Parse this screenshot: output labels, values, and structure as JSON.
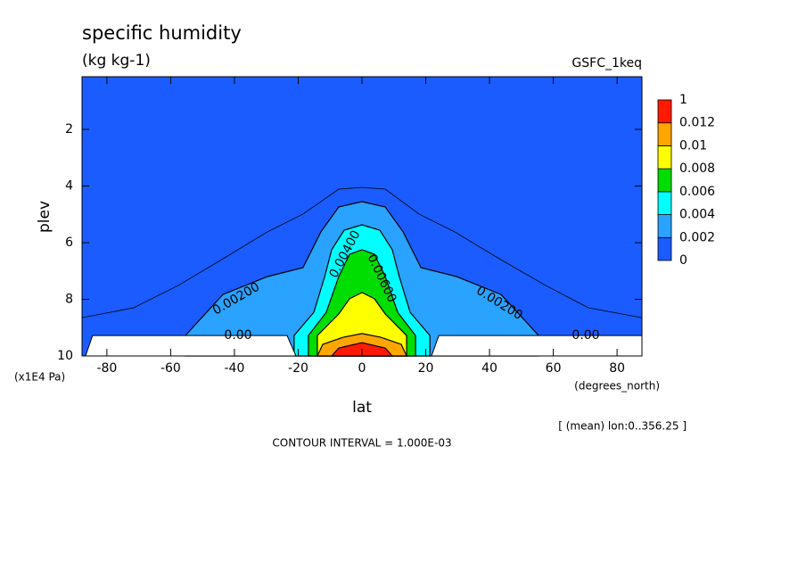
{
  "chart_data": {
    "type": "contour",
    "title": "specific humidity",
    "units": "(kg kg-1)",
    "dataset": "GSFC_1keq",
    "x_label": "lat",
    "x_units": "(degrees_north)",
    "y_label": "plev",
    "y_units": "(x1E4 Pa)",
    "footnote": "[ (mean) lon:0..356.25 ]",
    "contour_interval": "CONTOUR INTERVAL = 1.000E-03",
    "xlim": [
      -87.8,
      87.8
    ],
    "xticks": [
      -80,
      -60,
      -40,
      -20,
      0,
      20,
      40,
      60,
      80
    ],
    "ylim": [
      10,
      0.14
    ],
    "yticks": [
      2,
      4,
      6,
      8,
      10
    ],
    "levels": [
      0,
      0.002,
      0.004,
      0.006,
      0.008,
      0.01,
      0.012,
      1
    ],
    "colors": [
      "#1a5cff",
      "#2aa2ff",
      "#00ffff",
      "#00dd00",
      "#ffff00",
      "#ffa500",
      "#ff1a00"
    ],
    "contours": [
      {
        "level": 0.001,
        "lat": [
          -87.8,
          -71.6,
          -57.6,
          -43.6,
          -29.7,
          -18.5,
          -7.3,
          0,
          7.3,
          17.9,
          29.1,
          43.1,
          57.6,
          71.0,
          87.8
        ],
        "plev": [
          8.65,
          8.3,
          7.51,
          6.57,
          5.62,
          4.99,
          4.11,
          4.05,
          4.11,
          4.99,
          5.62,
          6.57,
          7.51,
          8.3,
          8.65
        ]
      },
      {
        "level": 0.002,
        "lat": [
          -55.4,
          -43.6,
          -29.7,
          -18.5,
          -12.9,
          -7.3,
          0,
          7.3,
          12.9,
          18.5,
          29.7,
          43.6,
          55.4,
          55.4,
          -55.4
        ],
        "plev": [
          9.28,
          7.83,
          7.2,
          6.88,
          5.62,
          4.74,
          4.55,
          4.74,
          5.62,
          6.88,
          7.2,
          7.83,
          9.28,
          10,
          10
        ]
      },
      {
        "level": 0.004,
        "lat": [
          -21.3,
          -15.1,
          -11.7,
          -9.5,
          -5.6,
          0,
          5.6,
          9.5,
          11.7,
          15.1,
          21.3,
          21.3,
          -21.3
        ],
        "plev": [
          9.28,
          8.46,
          7.2,
          6.25,
          5.56,
          5.37,
          5.56,
          6.25,
          7.2,
          8.46,
          9.28,
          10,
          10
        ]
      },
      {
        "level": 0.006,
        "lat": [
          -16.8,
          -11.2,
          -7.3,
          -3.9,
          0,
          3.9,
          7.3,
          11.2,
          16.8,
          16.8,
          -16.8
        ],
        "plev": [
          9.28,
          8.46,
          7.2,
          6.41,
          6.25,
          6.41,
          7.2,
          8.46,
          9.28,
          10,
          10
        ]
      },
      {
        "level": 0.008,
        "lat": [
          -14.0,
          -7.3,
          -3.9,
          0,
          3.9,
          7.3,
          14.0,
          14.0,
          -14.0
        ],
        "plev": [
          9.28,
          8.52,
          7.98,
          7.76,
          7.98,
          8.52,
          9.28,
          10,
          10
        ]
      },
      {
        "level": 0.01,
        "lat": [
          -12.3,
          -5.9,
          0,
          5.9,
          12.3,
          14.0,
          -14.0
        ],
        "plev": [
          9.59,
          9.34,
          9.21,
          9.34,
          9.59,
          10,
          10
        ]
      },
      {
        "level": 0.012,
        "lat": [
          -9.5,
          -7.3,
          0,
          7.3,
          9.5
        ],
        "plev": [
          10,
          9.72,
          9.53,
          9.72,
          10
        ]
      }
    ],
    "mask": [
      {
        "lat": [
          -86.7,
          -84.5,
          -23.5,
          -20.7
        ],
        "plev": [
          10,
          9.28,
          9.28,
          10
        ]
      },
      {
        "lat": [
          21.8,
          24.1,
          87.8,
          87.8
        ],
        "plev": [
          10,
          9.28,
          9.28,
          10
        ]
      }
    ],
    "contour_labels": [
      "0.00200",
      "0.00400",
      "0.00600",
      "0.00200",
      "0.00",
      "0.00"
    ]
  }
}
